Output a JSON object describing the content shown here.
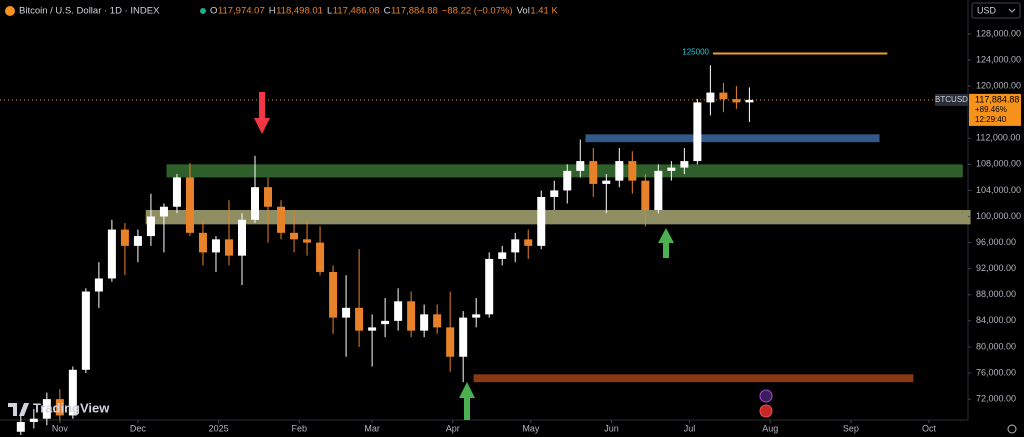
{
  "header": {
    "symbol": "Bitcoin / U.S. Dollar · 1D · INDEX",
    "open_label": "O",
    "open": "117,974.07",
    "high_label": "H",
    "high": "118,498.01",
    "low_label": "L",
    "low": "117,486.08",
    "close_label": "C",
    "close": "117,884.88",
    "change": "−88.22 (−0.07%)",
    "volume_label": "Vol",
    "volume": "1.41 K"
  },
  "currency": "USD",
  "brand": "TradingView",
  "chart_data": {
    "type": "candlestick",
    "up_color": "#ffffff",
    "down_color": "#e8822a",
    "x": [
      -15,
      -10,
      -5,
      0,
      5,
      10,
      15,
      20,
      25,
      30,
      35,
      40,
      45,
      50,
      55,
      60,
      65,
      70,
      75,
      80,
      85,
      90,
      95,
      100,
      105,
      110,
      115,
      120,
      125,
      130,
      135,
      140,
      145,
      150,
      155,
      160,
      165,
      170,
      175,
      180,
      185,
      190,
      195,
      200,
      205,
      210,
      215,
      220,
      225,
      230,
      235,
      240,
      245,
      250,
      255,
      260,
      265
    ],
    "open": [
      67000,
      68500,
      69000,
      72000,
      69500,
      76500,
      88500,
      90500,
      98000,
      95500,
      97000,
      100000,
      101500,
      106000,
      97500,
      94500,
      96500,
      94000,
      99500,
      104500,
      101500,
      97500,
      96500,
      96000,
      91500,
      84500,
      86000,
      82500,
      83500,
      84000,
      87000,
      82500,
      85000,
      83000,
      78500,
      84500,
      85000,
      93500,
      94500,
      96500,
      95500,
      103000,
      104000,
      107000,
      108500,
      105000,
      105500,
      108500,
      105500,
      101000,
      107000,
      107500,
      108500,
      117500,
      119000,
      118000,
      117500
    ],
    "high": [
      69500,
      70500,
      73000,
      73500,
      77000,
      89000,
      93000,
      99500,
      99000,
      98000,
      103500,
      102000,
      106500,
      108200,
      99500,
      97000,
      102500,
      100500,
      109300,
      106000,
      102500,
      101000,
      99500,
      98500,
      92500,
      91000,
      95000,
      85000,
      87500,
      89000,
      88500,
      86500,
      86500,
      88500,
      85500,
      87500,
      94500,
      95500,
      97500,
      98000,
      104000,
      105500,
      108000,
      111800,
      110500,
      106500,
      110500,
      110000,
      106500,
      108000,
      108500,
      110500,
      118000,
      123200,
      120500,
      120000,
      119800
    ],
    "low": [
      66500,
      67500,
      68000,
      68500,
      69000,
      76000,
      86000,
      90000,
      91000,
      93000,
      95500,
      94500,
      100500,
      97000,
      92500,
      91500,
      92500,
      89500,
      99000,
      96000,
      96500,
      94500,
      94000,
      91000,
      82000,
      78500,
      80000,
      77000,
      81500,
      82500,
      81500,
      81500,
      82000,
      76200,
      74600,
      83000,
      84500,
      92500,
      93000,
      93500,
      95000,
      101000,
      102000,
      106000,
      103000,
      100500,
      104500,
      103500,
      98500,
      100500,
      105500,
      106500,
      108000,
      115500,
      116000,
      116500,
      114500
    ],
    "close": [
      68500,
      69000,
      72000,
      69500,
      76500,
      88500,
      90500,
      98000,
      95500,
      97000,
      100000,
      101500,
      106000,
      97500,
      94500,
      96500,
      94000,
      99500,
      104500,
      101500,
      97500,
      96500,
      96000,
      91500,
      84500,
      86000,
      82500,
      83000,
      84000,
      87000,
      82500,
      85000,
      83000,
      78500,
      84500,
      85000,
      93500,
      94500,
      96500,
      95500,
      103000,
      104000,
      107000,
      108500,
      105000,
      105500,
      108500,
      105500,
      101000,
      107000,
      107500,
      108500,
      117500,
      119000,
      118000,
      117500,
      117885
    ],
    "xlim": [
      -23,
      349
    ],
    "ylim": [
      68800,
      133200
    ],
    "xticks": [
      {
        "value": 0,
        "label": "Nov"
      },
      {
        "value": 30,
        "label": "Dec"
      },
      {
        "value": 61,
        "label": "2025"
      },
      {
        "value": 92,
        "label": "Feb"
      },
      {
        "value": 120,
        "label": "Mar"
      },
      {
        "value": 151,
        "label": "Apr"
      },
      {
        "value": 181,
        "label": "May"
      },
      {
        "value": 212,
        "label": "Jun"
      },
      {
        "value": 242,
        "label": "Jul"
      },
      {
        "value": 273,
        "label": "Aug"
      },
      {
        "value": 304,
        "label": "Sep"
      },
      {
        "value": 334,
        "label": "Oct"
      }
    ],
    "yticks": [
      {
        "value": 72000,
        "label": "72,000.00"
      },
      {
        "value": 76000,
        "label": "76,000.00"
      },
      {
        "value": 80000,
        "label": "80,000.00"
      },
      {
        "value": 84000,
        "label": "84,000.00"
      },
      {
        "value": 88000,
        "label": "88,000.00"
      },
      {
        "value": 92000,
        "label": "92,000.00"
      },
      {
        "value": 96000,
        "label": "96,000.00"
      },
      {
        "value": 100000,
        "label": "100,000.00"
      },
      {
        "value": 104000,
        "label": "104,000.00"
      },
      {
        "value": 108000,
        "label": "108,000.00"
      },
      {
        "value": 112000,
        "label": "112,000.00"
      },
      {
        "value": 120000,
        "label": "120,000.00"
      },
      {
        "value": 124000,
        "label": "124,000.00"
      },
      {
        "value": 128000,
        "label": "128,000.00"
      }
    ],
    "grid": false,
    "zones": [
      {
        "x": [
          33,
          350
        ],
        "y": [
          98800,
          101000
        ],
        "color": "#8f8d62"
      },
      {
        "x": [
          41,
          347
        ],
        "y": [
          106000,
          108000
        ],
        "color": "#2f5f2b"
      },
      {
        "x": [
          202,
          315
        ],
        "y": [
          111400,
          112600
        ],
        "color": "#33588a"
      },
      {
        "x": [
          159,
          328
        ],
        "y": [
          74600,
          75800
        ],
        "color": "#8a3a12"
      }
    ],
    "level": {
      "value": 125000,
      "label": "125000",
      "x": [
        251,
        318
      ],
      "color": "#f0a02a"
    },
    "last_price": {
      "value": 117884.88,
      "label": "117,884.88",
      "change": "+89.46%",
      "countdown": "12:29:40",
      "symbol": "BTCUSD",
      "color": "#f7931a"
    }
  }
}
